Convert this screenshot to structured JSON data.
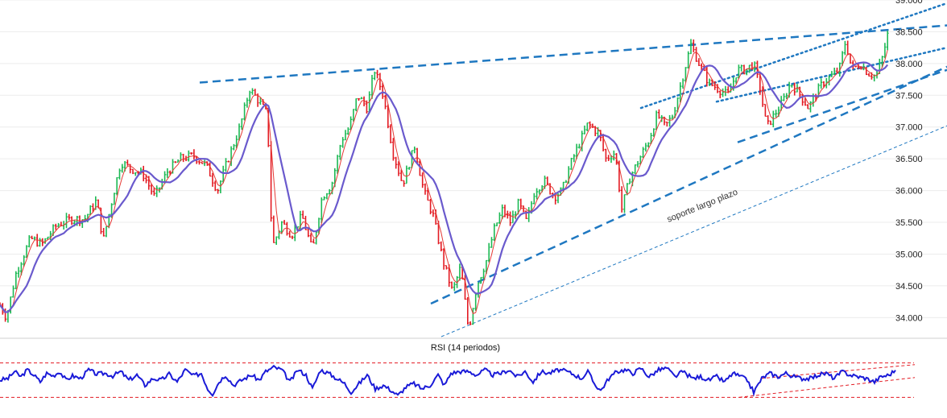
{
  "chart_data": [
    {
      "type": "candlestick",
      "title": "",
      "ylim": [
        33700,
        39000
      ],
      "y_ticks": [
        {
          "value": 34000,
          "label": "34.000"
        },
        {
          "value": 34500,
          "label": "34.500"
        },
        {
          "value": 35000,
          "label": "35.000"
        },
        {
          "value": 35500,
          "label": "35.500"
        },
        {
          "value": 36000,
          "label": "36.000"
        },
        {
          "value": 36500,
          "label": "36.500"
        },
        {
          "value": 37000,
          "label": "37.000"
        },
        {
          "value": 37500,
          "label": "37.500"
        },
        {
          "value": 38000,
          "label": "38.000"
        },
        {
          "value": 38500,
          "label": "38.500"
        },
        {
          "value": 39000,
          "label": "39.000"
        }
      ],
      "grid": true,
      "price_path": [
        [
          0,
          34200
        ],
        [
          8,
          34000
        ],
        [
          20,
          34700
        ],
        [
          38,
          35250
        ],
        [
          52,
          35150
        ],
        [
          70,
          35450
        ],
        [
          88,
          35550
        ],
        [
          105,
          35550
        ],
        [
          120,
          35850
        ],
        [
          128,
          35200
        ],
        [
          140,
          35900
        ],
        [
          150,
          36450
        ],
        [
          162,
          36350
        ],
        [
          178,
          36250
        ],
        [
          192,
          35900
        ],
        [
          208,
          36300
        ],
        [
          224,
          36500
        ],
        [
          240,
          36550
        ],
        [
          256,
          36400
        ],
        [
          270,
          36000
        ],
        [
          282,
          36450
        ],
        [
          298,
          37000
        ],
        [
          310,
          37600
        ],
        [
          322,
          37400
        ],
        [
          332,
          37200
        ],
        [
          338,
          35100
        ],
        [
          350,
          35500
        ],
        [
          362,
          35300
        ],
        [
          375,
          35600
        ],
        [
          388,
          35050
        ],
        [
          400,
          35900
        ],
        [
          412,
          36100
        ],
        [
          424,
          36800
        ],
        [
          434,
          37000
        ],
        [
          444,
          37500
        ],
        [
          456,
          37300
        ],
        [
          465,
          37900
        ],
        [
          476,
          37500
        ],
        [
          488,
          36600
        ],
        [
          500,
          36100
        ],
        [
          515,
          36700
        ],
        [
          526,
          36000
        ],
        [
          538,
          35600
        ],
        [
          550,
          34900
        ],
        [
          562,
          34400
        ],
        [
          572,
          34800
        ],
        [
          582,
          33800
        ],
        [
          592,
          34500
        ],
        [
          604,
          34900
        ],
        [
          614,
          35400
        ],
        [
          624,
          35700
        ],
        [
          634,
          35500
        ],
        [
          644,
          35800
        ],
        [
          654,
          35500
        ],
        [
          664,
          36000
        ],
        [
          676,
          36150
        ],
        [
          688,
          35900
        ],
        [
          698,
          36000
        ],
        [
          708,
          36400
        ],
        [
          718,
          36700
        ],
        [
          730,
          37050
        ],
        [
          744,
          36900
        ],
        [
          752,
          36500
        ],
        [
          764,
          36600
        ],
        [
          772,
          35700
        ],
        [
          782,
          36200
        ],
        [
          794,
          36500
        ],
        [
          806,
          36800
        ],
        [
          816,
          37200
        ],
        [
          826,
          37000
        ],
        [
          836,
          37200
        ],
        [
          848,
          37800
        ],
        [
          858,
          38300
        ],
        [
          868,
          38000
        ],
        [
          880,
          37700
        ],
        [
          892,
          37600
        ],
        [
          904,
          37500
        ],
        [
          916,
          37900
        ],
        [
          926,
          37900
        ],
        [
          936,
          38000
        ],
        [
          944,
          37600
        ],
        [
          952,
          37000
        ],
        [
          962,
          37200
        ],
        [
          972,
          37400
        ],
        [
          982,
          37700
        ],
        [
          994,
          37500
        ],
        [
          1004,
          37300
        ],
        [
          1012,
          37500
        ],
        [
          1022,
          37700
        ],
        [
          1032,
          37800
        ],
        [
          1042,
          37900
        ],
        [
          1050,
          38350
        ],
        [
          1058,
          37900
        ],
        [
          1068,
          38000
        ],
        [
          1078,
          37850
        ],
        [
          1088,
          37800
        ],
        [
          1096,
          38100
        ],
        [
          1104,
          38550
        ]
      ],
      "moving_averages": [
        {
          "color": "#e53935",
          "smoothing": 4
        },
        {
          "color": "#6a5acd",
          "smoothing": 11
        }
      ],
      "candle_colors": {
        "up": "#1db954",
        "down": "#e31b23"
      },
      "trendlines": [
        {
          "from": [
            248,
            37700
          ],
          "to": [
            1176,
            38600
          ],
          "style": "dashed",
          "color": "#1f78c1",
          "width": 2.5
        },
        {
          "from": [
            535,
            34220
          ],
          "to": [
            1176,
            37950
          ],
          "style": "dashed",
          "color": "#1f78c1",
          "width": 2.5
        },
        {
          "from": [
            548,
            33700
          ],
          "to": [
            1176,
            37020
          ],
          "style": "thin-dashed",
          "color": "#1f78c1",
          "width": 1
        },
        {
          "from": [
            796,
            37300
          ],
          "to": [
            1176,
            38950
          ],
          "style": "dotted",
          "color": "#1f78c1",
          "width": 2.5
        },
        {
          "from": [
            890,
            37400
          ],
          "to": [
            1176,
            38250
          ],
          "style": "dotted",
          "color": "#1f78c1",
          "width": 2.5
        },
        {
          "from": [
            916,
            36760
          ],
          "to": [
            1176,
            37900
          ],
          "style": "dashed",
          "color": "#1f78c1",
          "width": 2.5
        }
      ],
      "annotations": [
        {
          "text": "soporte largo plazo",
          "at": [
            830,
            35500
          ],
          "rotate": -22
        }
      ]
    },
    {
      "type": "line",
      "title": "RSI (14 periodos)",
      "ylim": [
        20,
        80
      ],
      "series_color": "#1a1ad8",
      "reference_lines": [
        {
          "value": 70,
          "color": "#e31b23",
          "style": "dashed"
        },
        {
          "value": 30,
          "color": "#e31b23",
          "style": "dashed"
        }
      ],
      "rsi_path": [
        [
          0,
          50
        ],
        [
          10,
          52
        ],
        [
          18,
          60
        ],
        [
          26,
          54
        ],
        [
          34,
          62
        ],
        [
          42,
          56
        ],
        [
          50,
          48
        ],
        [
          58,
          58
        ],
        [
          66,
          55
        ],
        [
          74,
          60
        ],
        [
          82,
          50
        ],
        [
          90,
          55
        ],
        [
          100,
          52
        ],
        [
          110,
          62
        ],
        [
          120,
          57
        ],
        [
          130,
          58
        ],
        [
          140,
          55
        ],
        [
          150,
          60
        ],
        [
          160,
          50
        ],
        [
          170,
          56
        ],
        [
          180,
          44
        ],
        [
          190,
          52
        ],
        [
          200,
          50
        ],
        [
          210,
          57
        ],
        [
          220,
          48
        ],
        [
          230,
          62
        ],
        [
          240,
          55
        ],
        [
          250,
          58
        ],
        [
          258,
          40
        ],
        [
          264,
          34
        ],
        [
          272,
          48
        ],
        [
          280,
          56
        ],
        [
          290,
          44
        ],
        [
          300,
          50
        ],
        [
          312,
          56
        ],
        [
          322,
          50
        ],
        [
          330,
          60
        ],
        [
          340,
          65
        ],
        [
          350,
          62
        ],
        [
          360,
          48
        ],
        [
          370,
          62
        ],
        [
          380,
          56
        ],
        [
          388,
          40
        ],
        [
          398,
          62
        ],
        [
          408,
          58
        ],
        [
          418,
          52
        ],
        [
          428,
          46
        ],
        [
          436,
          36
        ],
        [
          446,
          46
        ],
        [
          456,
          56
        ],
        [
          466,
          40
        ],
        [
          476,
          44
        ],
        [
          486,
          38
        ],
        [
          494,
          32
        ],
        [
          504,
          42
        ],
        [
          514,
          46
        ],
        [
          524,
          40
        ],
        [
          534,
          44
        ],
        [
          544,
          56
        ],
        [
          552,
          44
        ],
        [
          560,
          58
        ],
        [
          570,
          60
        ],
        [
          582,
          60
        ],
        [
          592,
          56
        ],
        [
          602,
          62
        ],
        [
          612,
          56
        ],
        [
          622,
          58
        ],
        [
          632,
          62
        ],
        [
          642,
          54
        ],
        [
          652,
          60
        ],
        [
          662,
          48
        ],
        [
          672,
          60
        ],
        [
          682,
          58
        ],
        [
          694,
          62
        ],
        [
          704,
          60
        ],
        [
          714,
          56
        ],
        [
          722,
          52
        ],
        [
          730,
          60
        ],
        [
          738,
          46
        ],
        [
          746,
          38
        ],
        [
          756,
          52
        ],
        [
          766,
          60
        ],
        [
          776,
          62
        ],
        [
          786,
          58
        ],
        [
          796,
          64
        ],
        [
          806,
          54
        ],
        [
          818,
          62
        ],
        [
          828,
          64
        ],
        [
          838,
          54
        ],
        [
          848,
          60
        ],
        [
          860,
          52
        ],
        [
          870,
          54
        ],
        [
          880,
          50
        ],
        [
          890,
          54
        ],
        [
          900,
          48
        ],
        [
          910,
          58
        ],
        [
          920,
          54
        ],
        [
          928,
          50
        ],
        [
          936,
          36
        ],
        [
          946,
          52
        ],
        [
          956,
          58
        ],
        [
          966,
          54
        ],
        [
          976,
          58
        ],
        [
          986,
          54
        ],
        [
          996,
          52
        ],
        [
          1006,
          52
        ],
        [
          1016,
          56
        ],
        [
          1026,
          58
        ],
        [
          1036,
          52
        ],
        [
          1046,
          60
        ],
        [
          1056,
          56
        ],
        [
          1066,
          54
        ],
        [
          1076,
          52
        ],
        [
          1086,
          48
        ],
        [
          1094,
          54
        ],
        [
          1104,
          56
        ],
        [
          1112,
          62
        ]
      ],
      "channel_lines": [
        {
          "from": [
            945,
            52
          ],
          "to": [
            1176,
            68
          ],
          "color": "#e31b23",
          "style": "dashed"
        },
        {
          "from": [
            918,
            30
          ],
          "to": [
            1176,
            53
          ],
          "color": "#e31b23",
          "style": "dashed"
        }
      ]
    }
  ]
}
